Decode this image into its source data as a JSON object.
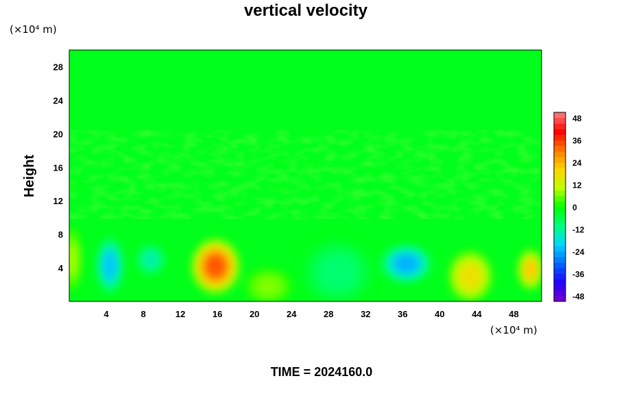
{
  "chart_data": {
    "type": "heatmap",
    "title": "vertical velocity",
    "xlabel": "",
    "ylabel": "Height",
    "x_unit": "(×10⁴ m)",
    "y_unit": "(×10⁴ m)",
    "footer": "TIME = 2024160.0",
    "xlim": [
      0,
      51
    ],
    "ylim": [
      0,
      30
    ],
    "x_ticks": [
      "4",
      "8",
      "12",
      "16",
      "20",
      "24",
      "28",
      "32",
      "36",
      "40",
      "44",
      "48"
    ],
    "y_ticks": [
      "4",
      "8",
      "12",
      "16",
      "20",
      "24",
      "28"
    ],
    "colorbar": {
      "min": -51,
      "max": 51,
      "ticks": [
        "48",
        "36",
        "24",
        "12",
        "0",
        "-12",
        "-24",
        "-36",
        "-48"
      ],
      "colors": [
        "#7a00c8",
        "#2200ff",
        "#0066ff",
        "#00d6ff",
        "#00ff80",
        "#00ff00",
        "#bfff00",
        "#ffd400",
        "#ff7a00",
        "#ff0000",
        "#ff8080"
      ]
    },
    "features": [
      {
        "x": 4.4,
        "y": 4.3,
        "value": -22,
        "rx": 1.4,
        "ry": 3.2
      },
      {
        "x": 8.8,
        "y": 5.0,
        "value": -14,
        "rx": 1.6,
        "ry": 1.8
      },
      {
        "x": 15.8,
        "y": 4.2,
        "value": 34,
        "rx": 2.4,
        "ry": 3.0
      },
      {
        "x": 21.5,
        "y": 1.8,
        "value": 7,
        "rx": 2.4,
        "ry": 2.0
      },
      {
        "x": 29.0,
        "y": 3.5,
        "value": -9,
        "rx": 4.0,
        "ry": 4.0
      },
      {
        "x": 36.4,
        "y": 4.5,
        "value": -24,
        "rx": 2.6,
        "ry": 2.2
      },
      {
        "x": 43.3,
        "y": 3.0,
        "value": 18,
        "rx": 2.2,
        "ry": 2.8
      },
      {
        "x": 49.8,
        "y": 3.8,
        "value": 22,
        "rx": 1.3,
        "ry": 2.2
      },
      {
        "x": 0.3,
        "y": 5.0,
        "value": 9,
        "rx": 1.0,
        "ry": 3.5
      }
    ]
  }
}
